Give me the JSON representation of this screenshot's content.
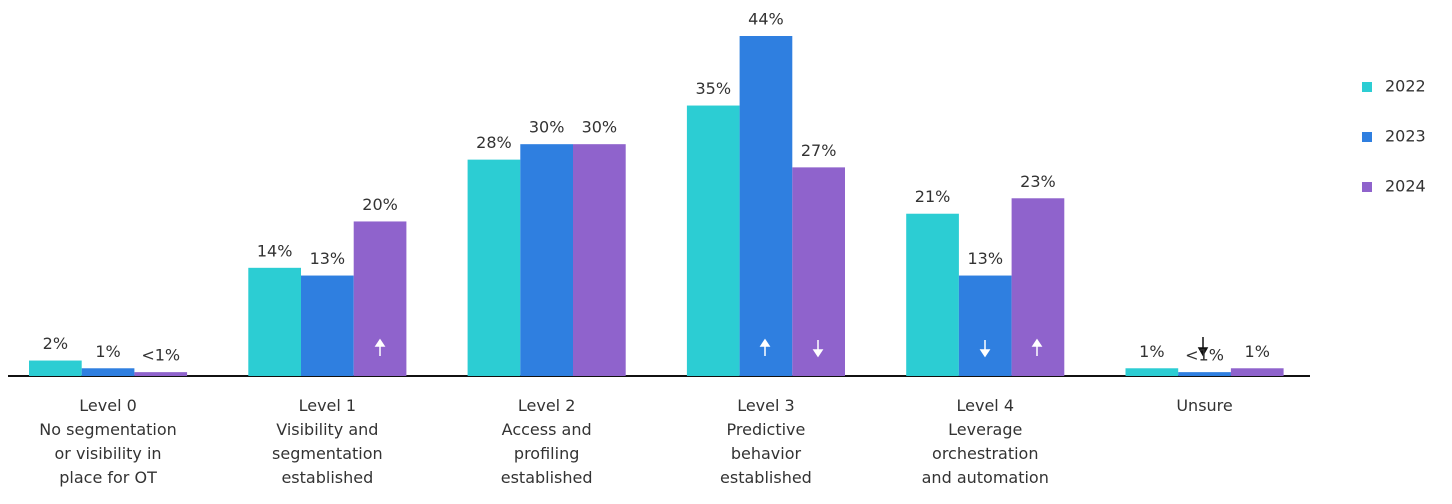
{
  "chart_data": {
    "type": "bar",
    "categories": [
      [
        "Level 0",
        "No segmentation",
        "or visibility in",
        "place for OT"
      ],
      [
        "Level 1",
        "Visibility and",
        "segmentation",
        "established"
      ],
      [
        "Level 2",
        "Access and",
        "profiling",
        "established"
      ],
      [
        "Level 3",
        "Predictive",
        "behavior",
        "established"
      ],
      [
        "Level 4",
        "Leverage",
        "orchestration",
        "and automation"
      ],
      [
        "Unsure"
      ]
    ],
    "series": [
      {
        "name": "2022",
        "color": "#2ccdd3",
        "values": [
          2,
          14,
          28,
          35,
          21,
          1
        ],
        "value_labels": [
          "2%",
          "14%",
          "28%",
          "35%",
          "21%",
          "1%"
        ]
      },
      {
        "name": "2023",
        "color": "#2f7fe0",
        "values": [
          1,
          13,
          30,
          44,
          13,
          0.5
        ],
        "value_labels": [
          "1%",
          "13%",
          "30%",
          "44%",
          "13%",
          "<1%"
        ]
      },
      {
        "name": "2024",
        "color": "#8f63cc",
        "values": [
          0.5,
          20,
          30,
          27,
          23,
          1
        ],
        "value_labels": [
          "<1%",
          "20%",
          "30%",
          "27%",
          "23%",
          "1%"
        ]
      }
    ],
    "ylim": [
      0,
      44
    ],
    "legend": "right"
  }
}
